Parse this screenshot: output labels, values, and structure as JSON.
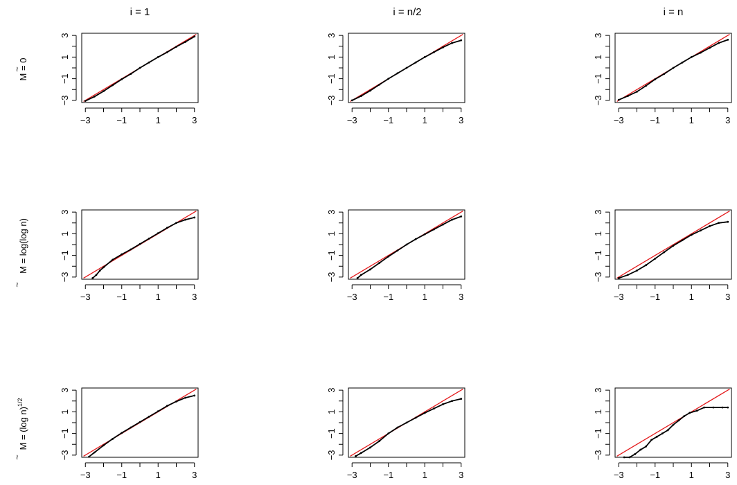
{
  "column_titles": [
    "i = 1",
    "i = n/2",
    "i = n"
  ],
  "row_labels": [
    {
      "base": "M",
      "rest": " = 0",
      "sup": ""
    },
    {
      "base": "M",
      "rest": " = log(log n)",
      "sup": ""
    },
    {
      "base": "M",
      "rest": " = (log n)",
      "sup": "1/2"
    }
  ],
  "colors": {
    "points": "#000000",
    "reference_line": "#e41a1c",
    "axes": "#000000"
  },
  "chart_data": [
    {
      "type": "scatter",
      "row": 0,
      "col": 0,
      "xlim": [
        -3.2,
        3.2
      ],
      "ylim": [
        -3.2,
        3.2
      ],
      "xticks": [
        -3,
        -2,
        -1,
        0,
        1,
        2,
        3
      ],
      "xtick_labels": [
        "-3",
        "",
        "-1",
        "",
        "1",
        "",
        "3"
      ],
      "yticks": [
        -3,
        -2,
        -1,
        0,
        1,
        2,
        3
      ],
      "ytick_labels": [
        "-3",
        "",
        "-1",
        "",
        "1",
        "",
        "3"
      ],
      "reference_line": {
        "slope": 1,
        "intercept": 0
      },
      "x": [
        -3.0,
        -2.5,
        -2.0,
        -1.5,
        -1.0,
        -0.5,
        0.0,
        0.5,
        1.0,
        1.5,
        2.0,
        2.5,
        3.0
      ],
      "y": [
        -3.05,
        -2.65,
        -2.15,
        -1.6,
        -1.05,
        -0.55,
        0.0,
        0.5,
        1.0,
        1.45,
        1.95,
        2.4,
        2.9
      ]
    },
    {
      "type": "scatter",
      "row": 0,
      "col": 1,
      "xlim": [
        -3.2,
        3.2
      ],
      "ylim": [
        -3.2,
        3.2
      ],
      "xticks": [
        -3,
        -2,
        -1,
        0,
        1,
        2,
        3
      ],
      "xtick_labels": [
        "-3",
        "",
        "-1",
        "",
        "1",
        "",
        "3"
      ],
      "yticks": [
        -3,
        -2,
        -1,
        0,
        1,
        2,
        3
      ],
      "ytick_labels": [
        "-3",
        "",
        "-1",
        "",
        "1",
        "",
        "3"
      ],
      "reference_line": {
        "slope": 1,
        "intercept": 0
      },
      "x": [
        -3.0,
        -2.5,
        -2.0,
        -1.5,
        -1.0,
        -0.5,
        0.0,
        0.5,
        1.0,
        1.5,
        2.0,
        2.5,
        3.0
      ],
      "y": [
        -3.0,
        -2.6,
        -2.1,
        -1.55,
        -1.0,
        -0.5,
        0.0,
        0.5,
        1.0,
        1.45,
        1.9,
        2.3,
        2.55
      ]
    },
    {
      "type": "scatter",
      "row": 0,
      "col": 2,
      "xlim": [
        -3.2,
        3.2
      ],
      "ylim": [
        -3.2,
        3.2
      ],
      "xticks": [
        -3,
        -2,
        -1,
        0,
        1,
        2,
        3
      ],
      "xtick_labels": [
        "-3",
        "",
        "-1",
        "",
        "1",
        "",
        "3"
      ],
      "yticks": [
        -3,
        -2,
        -1,
        0,
        1,
        2,
        3
      ],
      "ytick_labels": [
        "-3",
        "",
        "-1",
        "",
        "1",
        "",
        "3"
      ],
      "reference_line": {
        "slope": 1,
        "intercept": 0
      },
      "x": [
        -3.0,
        -2.5,
        -2.0,
        -1.5,
        -1.0,
        -0.5,
        0.0,
        0.5,
        1.0,
        1.5,
        2.0,
        2.5,
        3.0
      ],
      "y": [
        -2.95,
        -2.6,
        -2.2,
        -1.65,
        -1.05,
        -0.55,
        0.0,
        0.5,
        1.0,
        1.4,
        1.85,
        2.3,
        2.6
      ]
    },
    {
      "type": "scatter",
      "row": 1,
      "col": 0,
      "xlim": [
        -3.2,
        3.2
      ],
      "ylim": [
        -3.2,
        3.2
      ],
      "xticks": [
        -3,
        -2,
        -1,
        0,
        1,
        2,
        3
      ],
      "xtick_labels": [
        "-3",
        "",
        "-1",
        "",
        "1",
        "",
        "3"
      ],
      "yticks": [
        -3,
        -2,
        -1,
        0,
        1,
        2,
        3
      ],
      "ytick_labels": [
        "-3",
        "",
        "-1",
        "",
        "1",
        "",
        "3"
      ],
      "reference_line": {
        "slope": 1,
        "intercept": 0
      },
      "x": [
        -2.6,
        -2.4,
        -2.2,
        -2.0,
        -1.5,
        -1.0,
        -0.5,
        0.0,
        0.5,
        1.0,
        1.5,
        2.0,
        2.5,
        3.0
      ],
      "y": [
        -3.1,
        -2.8,
        -2.4,
        -2.1,
        -1.4,
        -0.9,
        -0.45,
        0.05,
        0.55,
        1.05,
        1.55,
        2.0,
        2.3,
        2.5
      ]
    },
    {
      "type": "scatter",
      "row": 1,
      "col": 1,
      "xlim": [
        -3.2,
        3.2
      ],
      "ylim": [
        -3.2,
        3.2
      ],
      "xticks": [
        -3,
        -2,
        -1,
        0,
        1,
        2,
        3
      ],
      "xtick_labels": [
        "-3",
        "",
        "-1",
        "",
        "1",
        "",
        "3"
      ],
      "yticks": [
        -3,
        -2,
        -1,
        0,
        1,
        2,
        3
      ],
      "ytick_labels": [
        "-3",
        "",
        "-1",
        "",
        "1",
        "",
        "3"
      ],
      "reference_line": {
        "slope": 1,
        "intercept": 0
      },
      "x": [
        -2.7,
        -2.5,
        -2.0,
        -1.5,
        -1.0,
        -0.5,
        0.0,
        0.5,
        1.0,
        1.5,
        2.0,
        2.5,
        3.0
      ],
      "y": [
        -3.1,
        -2.8,
        -2.3,
        -1.7,
        -1.1,
        -0.55,
        0.0,
        0.5,
        0.95,
        1.4,
        1.85,
        2.3,
        2.6
      ]
    },
    {
      "type": "scatter",
      "row": 1,
      "col": 2,
      "xlim": [
        -3.2,
        3.2
      ],
      "ylim": [
        -3.2,
        3.2
      ],
      "xticks": [
        -3,
        -2,
        -1,
        0,
        1,
        2,
        3
      ],
      "xtick_labels": [
        "-3",
        "",
        "-1",
        "",
        "1",
        "",
        "3"
      ],
      "yticks": [
        -3,
        -2,
        -1,
        0,
        1,
        2,
        3
      ],
      "ytick_labels": [
        "-3",
        "",
        "-1",
        "",
        "1",
        "",
        "3"
      ],
      "reference_line": {
        "slope": 1,
        "intercept": 0
      },
      "x": [
        -3.0,
        -2.5,
        -2.0,
        -1.5,
        -1.0,
        -0.5,
        0.0,
        0.5,
        1.0,
        1.5,
        2.0,
        2.5,
        3.0
      ],
      "y": [
        -3.1,
        -2.8,
        -2.4,
        -1.9,
        -1.3,
        -0.7,
        -0.1,
        0.4,
        0.9,
        1.3,
        1.7,
        2.0,
        2.1
      ]
    },
    {
      "type": "scatter",
      "row": 2,
      "col": 0,
      "xlim": [
        -3.2,
        3.2
      ],
      "ylim": [
        -3.2,
        3.2
      ],
      "xticks": [
        -3,
        -2,
        -1,
        0,
        1,
        2,
        3
      ],
      "xtick_labels": [
        "-3",
        "",
        "-1",
        "",
        "1",
        "",
        "3"
      ],
      "yticks": [
        -3,
        -2,
        -1,
        0,
        1,
        2,
        3
      ],
      "ytick_labels": [
        "-3",
        "",
        "-1",
        "",
        "1",
        "",
        "3"
      ],
      "reference_line": {
        "slope": 1,
        "intercept": 0
      },
      "x": [
        -2.8,
        -2.5,
        -2.0,
        -1.5,
        -1.0,
        -0.5,
        0.0,
        0.5,
        1.0,
        1.5,
        2.0,
        2.5,
        3.0
      ],
      "y": [
        -3.15,
        -2.75,
        -2.1,
        -1.5,
        -0.95,
        -0.45,
        0.05,
        0.55,
        1.05,
        1.55,
        1.95,
        2.3,
        2.5
      ]
    },
    {
      "type": "scatter",
      "row": 2,
      "col": 1,
      "xlim": [
        -3.2,
        3.2
      ],
      "ylim": [
        -3.2,
        3.2
      ],
      "xticks": [
        -3,
        -2,
        -1,
        0,
        1,
        2,
        3
      ],
      "xtick_labels": [
        "-3",
        "",
        "-1",
        "",
        "1",
        "",
        "3"
      ],
      "yticks": [
        -3,
        -2,
        -1,
        0,
        1,
        2,
        3
      ],
      "ytick_labels": [
        "-3",
        "",
        "-1",
        "",
        "1",
        "",
        "3"
      ],
      "reference_line": {
        "slope": 1,
        "intercept": 0
      },
      "x": [
        -2.8,
        -2.5,
        -2.0,
        -1.5,
        -1.0,
        -0.5,
        0.0,
        0.5,
        1.0,
        1.5,
        2.0,
        2.5,
        3.0
      ],
      "y": [
        -3.1,
        -2.8,
        -2.3,
        -1.7,
        -1.0,
        -0.45,
        0.0,
        0.45,
        0.9,
        1.3,
        1.7,
        2.0,
        2.2
      ]
    },
    {
      "type": "scatter",
      "row": 2,
      "col": 2,
      "xlim": [
        -3.2,
        3.2
      ],
      "ylim": [
        -3.2,
        3.2
      ],
      "xticks": [
        -3,
        -2,
        -1,
        0,
        1,
        2,
        3
      ],
      "xtick_labels": [
        "-3",
        "",
        "-1",
        "",
        "1",
        "",
        "3"
      ],
      "yticks": [
        -3,
        -2,
        -1,
        0,
        1,
        2,
        3
      ],
      "ytick_labels": [
        "-3",
        "",
        "-1",
        "",
        "1",
        "",
        "3"
      ],
      "reference_line": {
        "slope": 1,
        "intercept": 0
      },
      "x": [
        -2.7,
        -2.4,
        -2.1,
        -1.8,
        -1.5,
        -1.2,
        -0.9,
        -0.6,
        -0.3,
        0.0,
        0.3,
        0.6,
        0.9,
        1.3,
        1.7,
        2.2,
        2.7,
        3.0
      ],
      "y": [
        -3.2,
        -3.2,
        -2.9,
        -2.5,
        -2.2,
        -1.6,
        -1.3,
        -1.0,
        -0.7,
        -0.2,
        0.2,
        0.6,
        0.9,
        1.1,
        1.4,
        1.4,
        1.4,
        1.4
      ]
    }
  ]
}
